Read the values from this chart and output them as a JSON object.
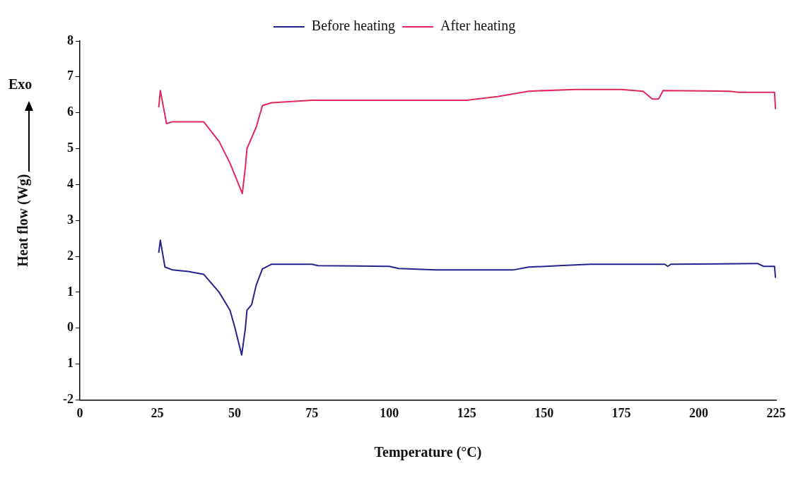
{
  "chart_data": {
    "type": "line",
    "xlabel": "Temperature (°C)",
    "ylabel": "Heat flow (Wg)",
    "annotations": [
      "Exo"
    ],
    "legend": "top",
    "grid": false,
    "marker": "none",
    "line_style": "solid",
    "xlim": [
      0,
      225
    ],
    "xticks": [
      0,
      25,
      50,
      75,
      100,
      125,
      150,
      175,
      200,
      225
    ],
    "ylim": [
      -2,
      8
    ],
    "yticks": [
      {
        "value": -2,
        "label": "-2"
      },
      {
        "value": -1,
        "label": "1"
      },
      0,
      1,
      2,
      3,
      4,
      5,
      6,
      7,
      8
    ],
    "series": [
      {
        "name": "Before heating",
        "color": "#25228c",
        "x": [
          25.5,
          26,
          27.5,
          30,
          35,
          40,
          45,
          48.5,
          50,
          52.3,
          53.5,
          54,
          55.5,
          57,
          59,
          62,
          75,
          77,
          100,
          103,
          115,
          140,
          145,
          155,
          165,
          189,
          190,
          191,
          219,
          221,
          224.5,
          224.8
        ],
        "values": [
          2.1,
          2.45,
          1.7,
          1.62,
          1.58,
          1.5,
          1.0,
          0.5,
          0.05,
          -0.75,
          0.0,
          0.5,
          0.65,
          1.2,
          1.65,
          1.78,
          1.78,
          1.74,
          1.72,
          1.66,
          1.62,
          1.62,
          1.7,
          1.74,
          1.78,
          1.78,
          1.72,
          1.78,
          1.8,
          1.72,
          1.72,
          1.4
        ]
      },
      {
        "name": "After heating",
        "color": "#e0285c",
        "x": [
          25.5,
          26,
          28,
          30,
          40,
          45,
          48.5,
          52.5,
          53.5,
          54,
          55.5,
          57,
          59,
          62,
          75,
          125,
          135,
          145,
          160,
          175,
          182,
          185,
          187,
          188.5,
          210,
          213,
          224.5,
          224.8
        ],
        "values": [
          6.15,
          6.62,
          5.7,
          5.75,
          5.75,
          5.2,
          4.6,
          3.75,
          4.5,
          5.0,
          5.3,
          5.6,
          6.2,
          6.28,
          6.35,
          6.35,
          6.45,
          6.6,
          6.65,
          6.65,
          6.6,
          6.38,
          6.38,
          6.62,
          6.6,
          6.57,
          6.57,
          6.1
        ]
      }
    ]
  }
}
